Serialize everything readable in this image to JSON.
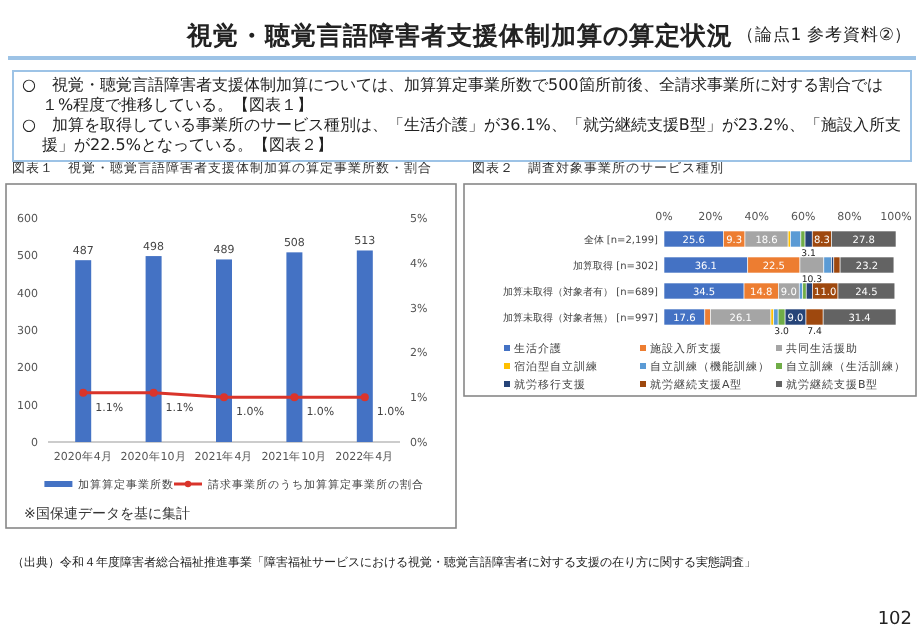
{
  "chart_data": [
    {
      "type": "bar",
      "title": "図表１　視覚・聴覚言語障害者支援体制加算の算定事業所数・割合",
      "categories": [
        "2020年4月",
        "2020年10月",
        "2021年4月",
        "2021年10月",
        "2022年4月"
      ],
      "series": [
        {
          "name": "加算算定事業所数",
          "color": "#4472c4",
          "values": [
            487,
            498,
            489,
            508,
            513
          ],
          "value_labels": [
            "487",
            "498",
            "489",
            "508",
            "513"
          ]
        },
        {
          "name": "請求事業所のうち加算算定事業所の割合",
          "type": "line",
          "axis": "y2",
          "color": "#d9342b",
          "values": [
            1.1,
            1.1,
            1.0,
            1.0,
            1.0
          ],
          "value_labels": [
            "1.1%",
            "1.1%",
            "1.0%",
            "1.0%",
            "1.0%"
          ]
        }
      ],
      "ylim": [
        0,
        600
      ],
      "yticks": [
        0,
        100,
        200,
        300,
        400,
        500,
        600
      ],
      "y2lim": [
        0,
        5
      ],
      "y2ticks": [
        {
          "value": 0,
          "label": "0%"
        },
        {
          "value": 1,
          "label": "1%"
        },
        {
          "value": 2,
          "label": "2%"
        },
        {
          "value": 3,
          "label": "3%"
        },
        {
          "value": 4,
          "label": "4%"
        },
        {
          "value": 5,
          "label": "5%"
        }
      ],
      "marker": "circle",
      "legend": "bottom",
      "annotations": [
        "視覚・聴覚言語障害者支援体制加算の算定状況",
        "（論点1 参考資料②）",
        "○　視覚・聴覚言語障害者支援体制加算については、加算算定事業所数で500箇所前後、全請求事業所に対する割合では１%程度で推移している。【図表１】",
        "○　加算を取得している事業所のサービス種別は、「生活介護」が36.1%、「就労継続支援B型」が23.2%、「施設入所支援」が22.5%となっている。【図表２】",
        "※国保連データを基に集計",
        "（出典）令和４年度障害者総合福祉推進事業「障害福祉サービスにおける視覚・聴覚言語障害者に対する支援の在り方に関する実態調査」",
        "102"
      ]
    },
    {
      "type": "bar",
      "orientation": "horizontal",
      "stacked": true,
      "title": "図表２　調査対象事業所のサービス種別",
      "categories": [
        "全体 [n=2,199]",
        "加算取得 [n=302]",
        "加算未取得（対象者有） [n=689]",
        "加算未取得（対象者無） [n=997]"
      ],
      "series": [
        {
          "name": "生活介護",
          "color": "#4472c4",
          "values": [
            25.6,
            36.1,
            34.5,
            17.6
          ],
          "value_labels": [
            "25.6",
            "36.1",
            "34.5",
            "17.6"
          ]
        },
        {
          "name": "施設入所支援",
          "color": "#ed7d31",
          "values": [
            9.3,
            22.5,
            14.8,
            2.4
          ],
          "value_labels": [
            "9.3",
            "22.5",
            "14.8",
            null
          ]
        },
        {
          "name": "共同生活援助",
          "color": "#a5a5a5",
          "values": [
            18.6,
            10.3,
            9.0,
            26.1
          ],
          "value_labels": [
            "18.6",
            "10.3",
            "9.0",
            "26.1"
          ]
        },
        {
          "name": "宿泊型自立訓練",
          "color": "#ffc000",
          "values": [
            1.0,
            null,
            null,
            1.2
          ],
          "value_labels": [
            null,
            null,
            null,
            null
          ]
        },
        {
          "name": "自立訓練（機能訓練）",
          "color": "#5b9bd5",
          "values": [
            4.5,
            3.3,
            1.5,
            1.9
          ],
          "value_labels": [
            null,
            null,
            null,
            null
          ]
        },
        {
          "name": "自立訓練（生活訓練）",
          "color": "#70ad47",
          "values": [
            1.8,
            null,
            1.5,
            3.0
          ],
          "value_labels": [
            null,
            null,
            null,
            "3.0"
          ]
        },
        {
          "name": "就労移行支援",
          "color": "#264478",
          "values": [
            3.1,
            1.0,
            2.7,
            9.0
          ],
          "value_labels": [
            "3.1",
            null,
            null,
            "9.0"
          ]
        },
        {
          "name": "就労継続支援A型",
          "color": "#9e480e",
          "values": [
            8.3,
            2.7,
            11.0,
            7.4
          ],
          "value_labels": [
            "8.3",
            null,
            "11.0",
            "7.4"
          ]
        },
        {
          "name": "就労継続支援B型",
          "color": "#636363",
          "values": [
            27.8,
            23.2,
            24.5,
            31.4
          ],
          "value_labels": [
            "27.8",
            "23.2",
            "24.5",
            "31.4"
          ]
        }
      ],
      "xlim": [
        0,
        100
      ],
      "xticks": [
        {
          "value": 0,
          "label": "0%"
        },
        {
          "value": 20,
          "label": "20%"
        },
        {
          "value": 40,
          "label": "40%"
        },
        {
          "value": 60,
          "label": "60%"
        },
        {
          "value": 80,
          "label": "80%"
        },
        {
          "value": 100,
          "label": "100%"
        }
      ],
      "legend": "bottom"
    }
  ]
}
